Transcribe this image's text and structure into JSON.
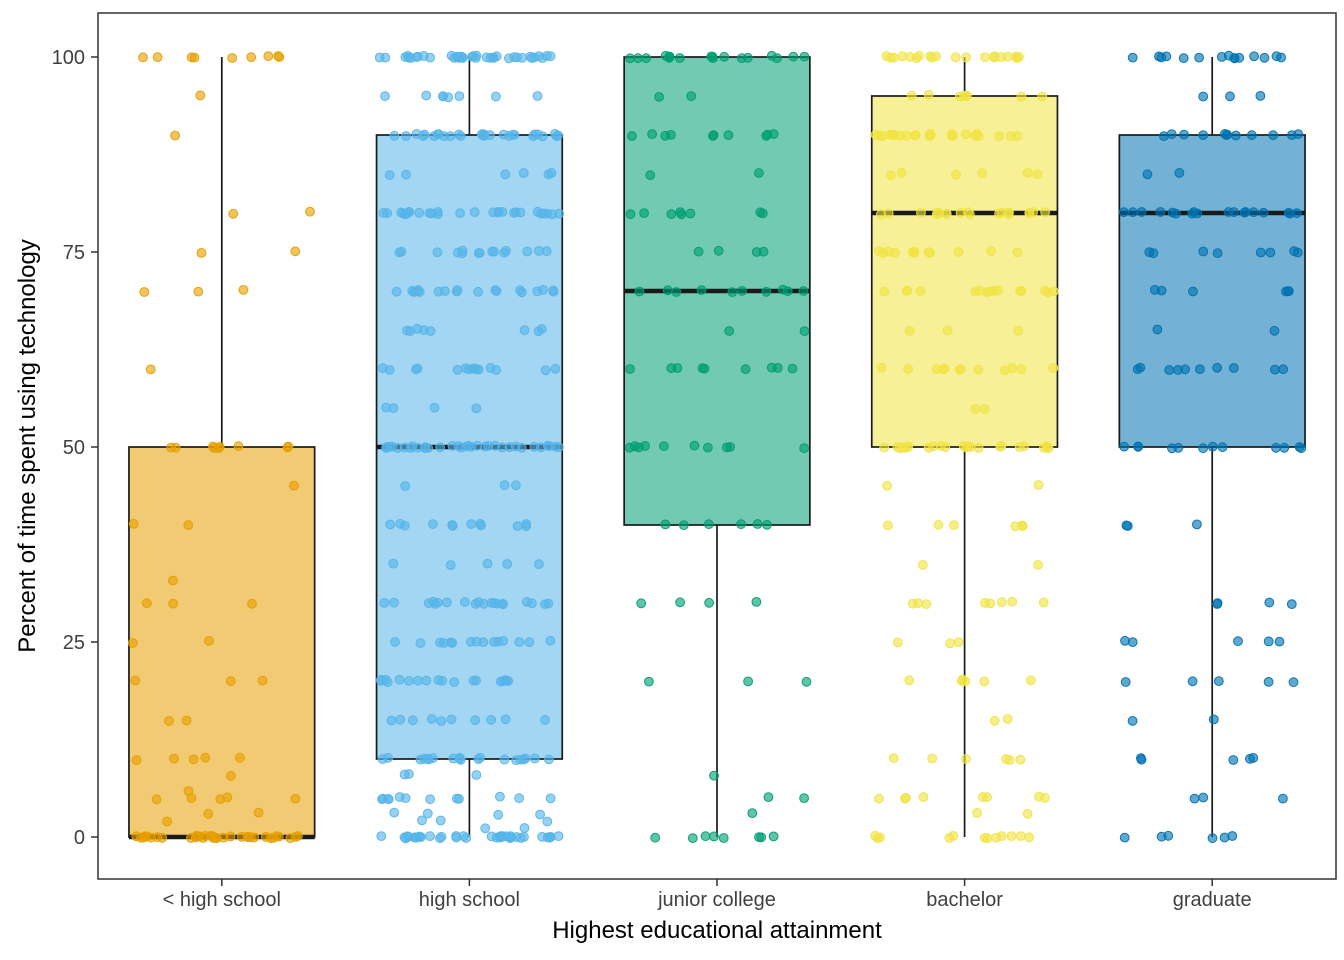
{
  "chart_data": {
    "type": "boxplot",
    "title": "",
    "xlabel": "Highest educational attainment",
    "ylabel": "Percent of time spent using technology",
    "ylim": [
      0,
      100
    ],
    "yticks": [
      0,
      25,
      50,
      75,
      100
    ],
    "grid": false,
    "legend": "none",
    "categories": [
      "< high school",
      "high school",
      "junior college",
      "bachelor",
      "graduate"
    ],
    "colors": [
      "#E69F00",
      "#56B4E9",
      "#009E73",
      "#F0E442",
      "#0072B2"
    ],
    "boxes": [
      {
        "category": "< high school",
        "whisker_low": 0,
        "q1": 0,
        "median": 0,
        "q3": 50,
        "whisker_high": 100
      },
      {
        "category": "high school",
        "whisker_low": 0,
        "q1": 10,
        "median": 50,
        "q3": 90,
        "whisker_high": 100
      },
      {
        "category": "junior college",
        "whisker_low": 0,
        "q1": 40,
        "median": 70,
        "q3": 100,
        "whisker_high": 100
      },
      {
        "category": "bachelor",
        "whisker_low": 0,
        "q1": 50,
        "median": 80,
        "q3": 95,
        "whisker_high": 100
      },
      {
        "category": "graduate",
        "whisker_low": 0,
        "q1": 50,
        "median": 80,
        "q3": 90,
        "whisker_high": 100
      }
    ],
    "points": [
      {
        "category": "< high school",
        "value_counts": {
          "0": 34,
          "2": 1,
          "3": 2,
          "5": 5,
          "6": 1,
          "8": 1,
          "10": 5,
          "15": 2,
          "20": 3,
          "25": 2,
          "30": 3,
          "33": 1,
          "40": 2,
          "45": 1,
          "50": 9,
          "60": 1,
          "70": 3,
          "75": 2,
          "80": 2,
          "90": 1,
          "95": 1,
          "100": 9
        }
      },
      {
        "category": "high school",
        "value_counts": {
          "0": 38,
          "1": 2,
          "2": 3,
          "3": 4,
          "5": 12,
          "8": 3,
          "10": 20,
          "15": 10,
          "20": 18,
          "25": 15,
          "30": 20,
          "35": 5,
          "40": 12,
          "45": 3,
          "50": 33,
          "55": 4,
          "60": 15,
          "65": 8,
          "70": 20,
          "75": 15,
          "80": 28,
          "85": 6,
          "90": 28,
          "95": 8,
          "100": 38
        }
      },
      {
        "category": "junior college",
        "value_counts": {
          "0": 8,
          "3": 1,
          "5": 2,
          "8": 1,
          "20": 3,
          "30": 4,
          "40": 6,
          "50": 10,
          "60": 9,
          "65": 2,
          "70": 10,
          "75": 4,
          "80": 8,
          "85": 2,
          "90": 10,
          "95": 2,
          "100": 18
        }
      },
      {
        "category": "bachelor",
        "value_counts": {
          "0": 12,
          "3": 2,
          "5": 8,
          "10": 6,
          "15": 2,
          "20": 6,
          "25": 3,
          "30": 8,
          "35": 2,
          "40": 6,
          "45": 2,
          "50": 24,
          "55": 2,
          "60": 12,
          "65": 3,
          "70": 15,
          "75": 12,
          "80": 20,
          "85": 6,
          "90": 24,
          "95": 8,
          "100": 20
        }
      },
      {
        "category": "graduate",
        "value_counts": {
          "0": 6,
          "5": 3,
          "10": 5,
          "15": 2,
          "20": 5,
          "25": 5,
          "30": 4,
          "40": 3,
          "50": 12,
          "60": 10,
          "65": 2,
          "70": 6,
          "75": 8,
          "80": 18,
          "85": 2,
          "90": 12,
          "95": 3,
          "100": 15
        }
      }
    ],
    "style": {
      "box_fill_opacity": 0.55,
      "point_fill_opacity": 0.62,
      "box_border_color": "#1a1a1a",
      "tick_label_color": "#404040",
      "panel_border_color": "#333333"
    }
  }
}
